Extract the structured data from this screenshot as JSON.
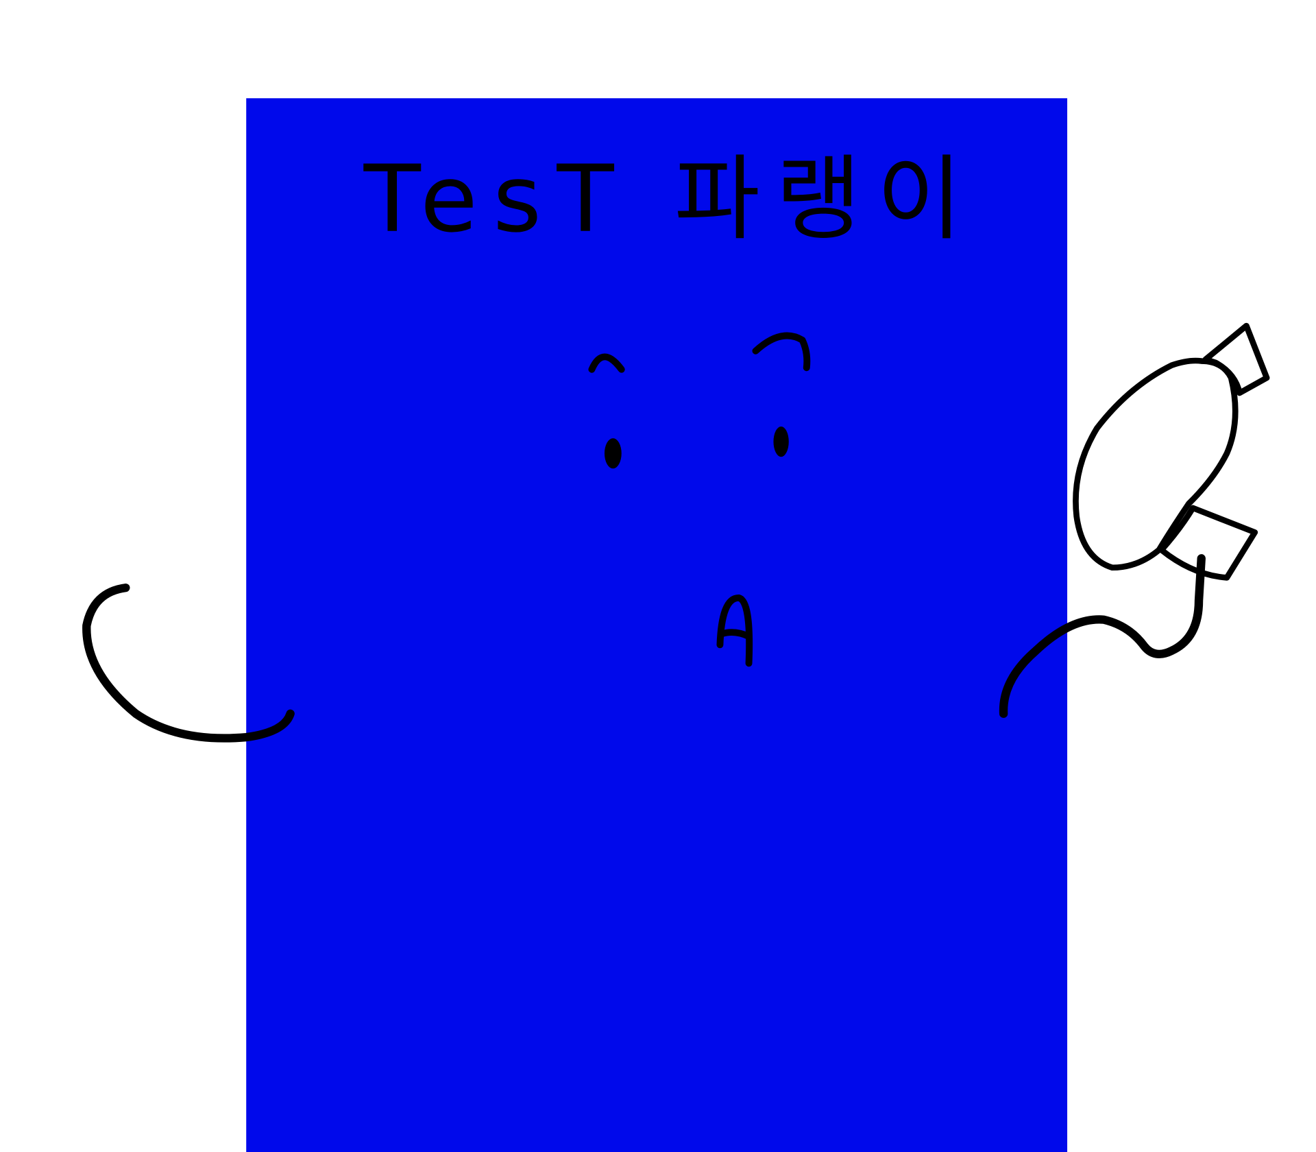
{
  "title": "TesT 파랭이"
}
